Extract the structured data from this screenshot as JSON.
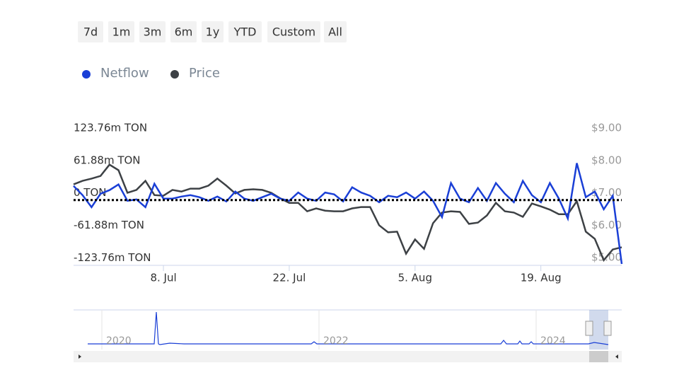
{
  "chart_data": {
    "type": "line",
    "range_buttons": [
      "7d",
      "1m",
      "3m",
      "6m",
      "1y",
      "YTD",
      "Custom",
      "All"
    ],
    "categories": [
      null,
      null,
      null,
      null,
      null,
      null,
      null,
      null,
      null,
      null,
      "8. Jul",
      null,
      null,
      null,
      null,
      null,
      null,
      null,
      null,
      null,
      null,
      null,
      null,
      null,
      "22. Jul",
      null,
      null,
      null,
      null,
      null,
      null,
      null,
      null,
      null,
      null,
      null,
      null,
      null,
      "5. Aug",
      null,
      null,
      null,
      null,
      null,
      null,
      null,
      null,
      null,
      null,
      null,
      null,
      null,
      "19. Aug",
      null,
      null,
      null,
      null,
      null,
      null,
      null,
      null,
      null
    ],
    "series": [
      {
        "name": "Netflow",
        "color": "#1a3fd6",
        "values": [
          13.5,
          -4.1,
          -27.1,
          -1.4,
          5.4,
          16.2,
          -14.9,
          -12.2,
          -27.1,
          17.6,
          -10.8,
          -10.8,
          -6.8,
          -4.1,
          -8.1,
          -14.9,
          -6.8,
          -16.2,
          2.7,
          -10.8,
          -14.9,
          -8.1,
          -1.4,
          -10.8,
          -14.9,
          0.9,
          -10.8,
          -14.9,
          0.9,
          -2.7,
          -16.2,
          10.8,
          0.9,
          -5.4,
          -17.6,
          -5.4,
          -8.1,
          0.9,
          -10.8,
          2.7,
          -14.9,
          -46.0,
          18.9,
          -10.8,
          -17.6,
          9.5,
          -14.9,
          18.9,
          -1.4,
          -17.6,
          23.0,
          -4.1,
          -17.6,
          18.9,
          -10.8,
          -48.7,
          56.8,
          -8.1,
          2.7,
          -31.1,
          -5.4,
          -135.3
        ]
      },
      {
        "name": "Price",
        "color": "#3d4145",
        "axis": "y2",
        "values": [
          7.26,
          7.37,
          7.44,
          7.52,
          7.87,
          7.7,
          7.0,
          7.09,
          7.37,
          6.93,
          6.91,
          7.09,
          7.04,
          7.13,
          7.13,
          7.22,
          7.44,
          7.22,
          6.98,
          7.09,
          7.11,
          7.09,
          7.0,
          6.83,
          6.69,
          6.69,
          6.43,
          6.52,
          6.45,
          6.43,
          6.43,
          6.52,
          6.56,
          6.56,
          6.0,
          5.78,
          5.8,
          5.12,
          5.56,
          5.27,
          6.06,
          6.39,
          6.43,
          6.41,
          6.04,
          6.08,
          6.3,
          6.69,
          6.43,
          6.39,
          6.26,
          6.67,
          6.58,
          6.48,
          6.34,
          6.34,
          6.74,
          5.8,
          5.58,
          4.92,
          5.25,
          5.32
        ]
      }
    ],
    "reference_line": -13.5,
    "ylim": [
      -138,
      123.76
    ],
    "yticks": [
      {
        "value": 123.76,
        "label": "123.76m TON"
      },
      {
        "value": 61.88,
        "label": "61.88m TON"
      },
      {
        "value": 0,
        "label": "0 TON"
      },
      {
        "value": -61.88,
        "label": "-61.88m TON"
      },
      {
        "value": -123.76,
        "label": "-123.76m TON"
      }
    ],
    "y2lim": [
      4.76,
      9
    ],
    "y2ticks": [
      {
        "value": 9,
        "label": "$9.00"
      },
      {
        "value": 8,
        "label": "$8.00"
      },
      {
        "value": 7,
        "label": "$7.00"
      },
      {
        "value": 6,
        "label": "$6.00"
      },
      {
        "value": 5,
        "label": "$5.00"
      }
    ],
    "navigator_labels": [
      "2020",
      "2022",
      "2024"
    ]
  }
}
